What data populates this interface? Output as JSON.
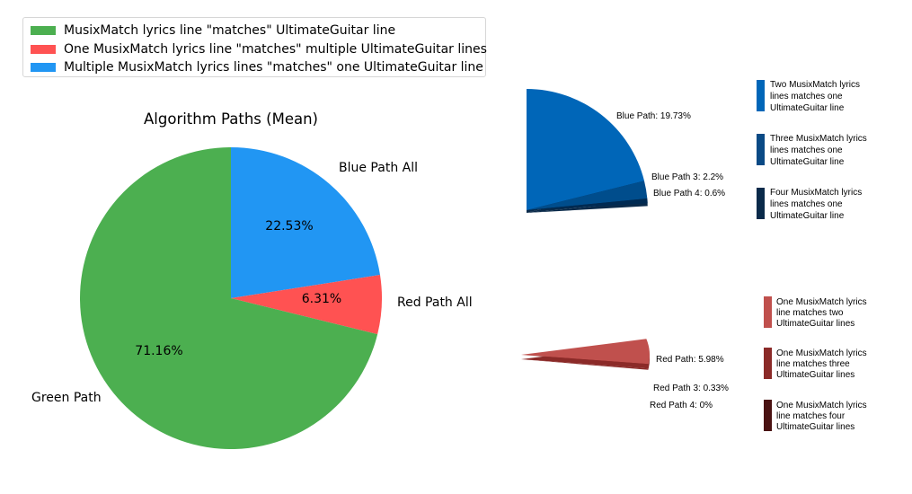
{
  "legend": {
    "items": [
      {
        "label": "MusixMatch lyrics line \"matches\" UltimateGuitar line",
        "color": "#4caf50"
      },
      {
        "label": "One MusixMatch lyrics line \"matches\" multiple UltimateGuitar lines",
        "color": "#ff5252"
      },
      {
        "label": "Multiple MusixMatch lyrics lines \"matches\" one UltimateGuitar line",
        "color": "#2196f3"
      }
    ]
  },
  "chart_data": [
    {
      "type": "pie",
      "title": "Algorithm Paths (Mean)",
      "slices": [
        {
          "label": "Blue Path All",
          "value": 22.53,
          "pct_label": "22.53%",
          "color": "#2196f3"
        },
        {
          "label": "Red Path All",
          "value": 6.31,
          "pct_label": "6.31%",
          "color": "#ff5252"
        },
        {
          "label": "Green Path",
          "value": 71.16,
          "pct_label": "71.16%",
          "color": "#4caf50"
        }
      ]
    },
    {
      "type": "pie",
      "slices": [
        {
          "label": "Blue Path: 19.73%",
          "value": 19.73,
          "color": "#0066b8"
        },
        {
          "label": "Blue Path 3: 2.2%",
          "value": 2.2,
          "color": "#004d8c"
        },
        {
          "label": "Blue Path 4: 0.6%",
          "value": 0.6,
          "color": "#002a52"
        }
      ],
      "legend": [
        {
          "label": "Two MusixMatch lyrics lines matches one UltimateGuitar line",
          "lines": [
            "Two MusixMatch lyrics",
            "lines matches one",
            "UltimateGuitar line"
          ],
          "color": "#0066b8"
        },
        {
          "label": "Three MusixMatch lyrics lines matches one UltimateGuitar line",
          "lines": [
            "Three MusixMatch lyrics",
            "lines matches one",
            "UltimateGuitar line"
          ],
          "color": "#0a4a85"
        },
        {
          "label": "Four MusixMatch lyrics lines matches one UltimateGuitar line",
          "lines": [
            "Four MusixMatch lyrics",
            "lines matches one",
            "UltimateGuitar line"
          ],
          "color": "#0a2a4a"
        }
      ]
    },
    {
      "type": "pie",
      "slices": [
        {
          "label": "Red Path: 5.98%",
          "value": 5.98,
          "color": "#c0504d"
        },
        {
          "label": "Red Path 3: 0.33%",
          "value": 0.33,
          "color": "#8b2a28"
        },
        {
          "label": "Red Path 4: 0%",
          "value": 0,
          "color": "#4a1212"
        }
      ],
      "legend": [
        {
          "label": "One MusixMatch lyrics line matches two UltimateGuitar lines",
          "lines": [
            "One MusixMatch lyrics",
            "line matches two",
            "UltimateGuitar lines"
          ],
          "color": "#c0504d"
        },
        {
          "label": "One MusixMatch lyrics line matches three UltimateGuitar lines",
          "lines": [
            "One MusixMatch lyrics",
            "line matches three",
            "UltimateGuitar lines"
          ],
          "color": "#8b2a28"
        },
        {
          "label": "One MusixMatch lyrics line matches four UltimateGuitar lines",
          "lines": [
            "One MusixMatch lyrics",
            "line matches four",
            "UltimateGuitar lines"
          ],
          "color": "#4a1212"
        }
      ]
    }
  ]
}
